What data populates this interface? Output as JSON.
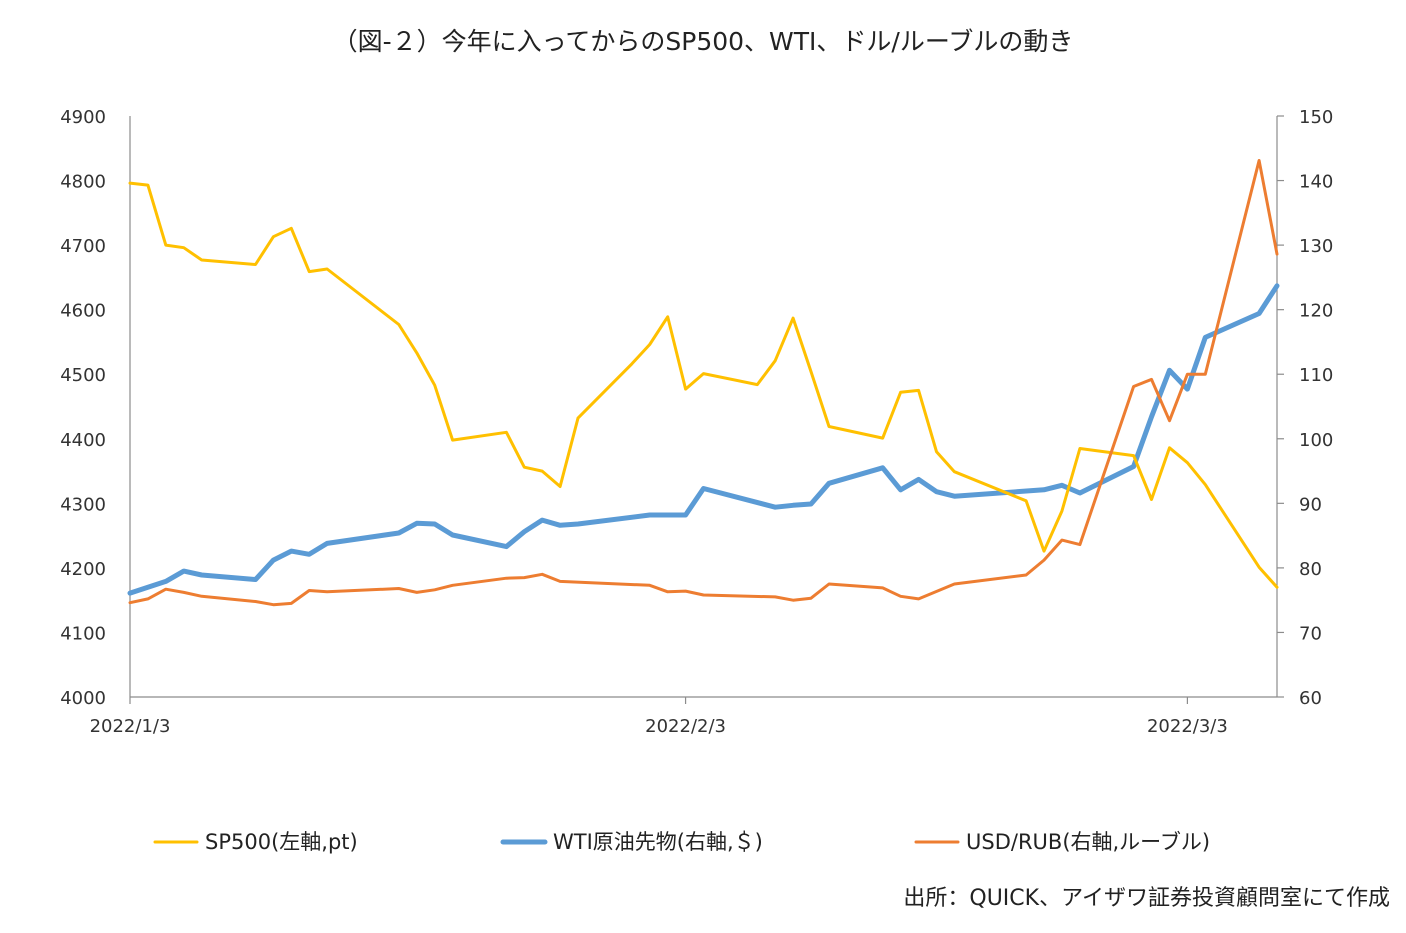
{
  "title": "（図-２）今年に入ってからのSP500、WTI、ドル/ルーブルの動き",
  "source": "出所：QUICK、アイザワ証券投資顧問室にて作成",
  "colors": {
    "sp500": "#FFC000",
    "wti": "#5B9BD5",
    "usdrub": "#ED7D31",
    "axis": "#8c8c8c"
  },
  "chart_data": {
    "type": "line",
    "title": "（図-２）今年に入ってからのSP500、WTI、ドル/ルーブルの動き",
    "x_ticks": [
      "2022/1/3",
      "2022/2/3",
      "2022/3/3"
    ],
    "x_range": [
      "2022/1/3",
      "2022/3/8"
    ],
    "y_left": {
      "range": [
        4000,
        4900
      ],
      "ticks": [
        4000,
        4100,
        4200,
        4300,
        4400,
        4500,
        4600,
        4700,
        4800,
        4900
      ]
    },
    "y_right": {
      "range": [
        60,
        150
      ],
      "ticks": [
        60,
        70,
        80,
        90,
        100,
        110,
        120,
        130,
        140,
        150
      ]
    },
    "grid": false,
    "legend_position": "bottom",
    "series": [
      {
        "name": "SP500(左軸,pt)",
        "axis": "left",
        "key": "sp500",
        "points": [
          [
            "2022-01-03",
            4796
          ],
          [
            "2022-01-04",
            4793
          ],
          [
            "2022-01-05",
            4700
          ],
          [
            "2022-01-06",
            4696
          ],
          [
            "2022-01-07",
            4677
          ],
          [
            "2022-01-10",
            4670
          ],
          [
            "2022-01-11",
            4713
          ],
          [
            "2022-01-12",
            4726
          ],
          [
            "2022-01-13",
            4659
          ],
          [
            "2022-01-14",
            4663
          ],
          [
            "2022-01-18",
            4577
          ],
          [
            "2022-01-19",
            4533
          ],
          [
            "2022-01-20",
            4483
          ],
          [
            "2022-01-21",
            4398
          ],
          [
            "2022-01-24",
            4410
          ],
          [
            "2022-01-25",
            4356
          ],
          [
            "2022-01-26",
            4350
          ],
          [
            "2022-01-27",
            4326
          ],
          [
            "2022-01-28",
            4432
          ],
          [
            "2022-01-31",
            4516
          ],
          [
            "2022-02-01",
            4546
          ],
          [
            "2022-02-02",
            4589
          ],
          [
            "2022-02-03",
            4477
          ],
          [
            "2022-02-04",
            4501
          ],
          [
            "2022-02-07",
            4484
          ],
          [
            "2022-02-08",
            4521
          ],
          [
            "2022-02-09",
            4587
          ],
          [
            "2022-02-10",
            4504
          ],
          [
            "2022-02-11",
            4419
          ],
          [
            "2022-02-14",
            4401
          ],
          [
            "2022-02-15",
            4472
          ],
          [
            "2022-02-16",
            4475
          ],
          [
            "2022-02-17",
            4380
          ],
          [
            "2022-02-18",
            4349
          ],
          [
            "2022-02-22",
            4304
          ],
          [
            "2022-02-23",
            4226
          ],
          [
            "2022-02-24",
            4288
          ],
          [
            "2022-02-25",
            4385
          ],
          [
            "2022-02-28",
            4374
          ],
          [
            "2022-03-01",
            4306
          ],
          [
            "2022-03-02",
            4386
          ],
          [
            "2022-03-03",
            4363
          ],
          [
            "2022-03-04",
            4329
          ],
          [
            "2022-03-07",
            4201
          ],
          [
            "2022-03-08",
            4170
          ]
        ]
      },
      {
        "name": "WTI原油先物(右軸,＄)",
        "axis": "right",
        "key": "wti",
        "points": [
          [
            "2022-01-03",
            76.1
          ],
          [
            "2022-01-05",
            77.9
          ],
          [
            "2022-01-06",
            79.5
          ],
          [
            "2022-01-07",
            78.9
          ],
          [
            "2022-01-10",
            78.2
          ],
          [
            "2022-01-11",
            81.2
          ],
          [
            "2022-01-12",
            82.6
          ],
          [
            "2022-01-13",
            82.1
          ],
          [
            "2022-01-14",
            83.8
          ],
          [
            "2022-01-18",
            85.4
          ],
          [
            "2022-01-19",
            86.9
          ],
          [
            "2022-01-20",
            86.8
          ],
          [
            "2022-01-21",
            85.1
          ],
          [
            "2022-01-24",
            83.3
          ],
          [
            "2022-01-25",
            85.6
          ],
          [
            "2022-01-26",
            87.4
          ],
          [
            "2022-01-27",
            86.6
          ],
          [
            "2022-01-28",
            86.8
          ],
          [
            "2022-02-01",
            88.2
          ],
          [
            "2022-02-03",
            88.2
          ],
          [
            "2022-02-04",
            92.3
          ],
          [
            "2022-02-08",
            89.4
          ],
          [
            "2022-02-09",
            89.7
          ],
          [
            "2022-02-10",
            89.9
          ],
          [
            "2022-02-11",
            93.1
          ],
          [
            "2022-02-14",
            95.5
          ],
          [
            "2022-02-15",
            92.1
          ],
          [
            "2022-02-16",
            93.7
          ],
          [
            "2022-02-17",
            91.8
          ],
          [
            "2022-02-18",
            91.1
          ],
          [
            "2022-02-23",
            92.1
          ],
          [
            "2022-02-24",
            92.8
          ],
          [
            "2022-02-25",
            91.6
          ],
          [
            "2022-02-28",
            95.7
          ],
          [
            "2022-03-01",
            103.4
          ],
          [
            "2022-03-02",
            110.6
          ],
          [
            "2022-03-03",
            107.7
          ],
          [
            "2022-03-04",
            115.7
          ],
          [
            "2022-03-07",
            119.4
          ],
          [
            "2022-03-08",
            123.7
          ]
        ]
      },
      {
        "name": "USD/RUB(右軸,ルーブル)",
        "axis": "right",
        "key": "usdrub",
        "points": [
          [
            "2022-01-03",
            74.6
          ],
          [
            "2022-01-04",
            75.2
          ],
          [
            "2022-01-05",
            76.7
          ],
          [
            "2022-01-06",
            76.2
          ],
          [
            "2022-01-07",
            75.6
          ],
          [
            "2022-01-10",
            74.8
          ],
          [
            "2022-01-11",
            74.3
          ],
          [
            "2022-01-12",
            74.5
          ],
          [
            "2022-01-13",
            76.5
          ],
          [
            "2022-01-14",
            76.3
          ],
          [
            "2022-01-18",
            76.8
          ],
          [
            "2022-01-19",
            76.2
          ],
          [
            "2022-01-20",
            76.6
          ],
          [
            "2022-01-21",
            77.3
          ],
          [
            "2022-01-24",
            78.4
          ],
          [
            "2022-01-25",
            78.5
          ],
          [
            "2022-01-26",
            79.0
          ],
          [
            "2022-01-27",
            77.9
          ],
          [
            "2022-02-01",
            77.3
          ],
          [
            "2022-02-02",
            76.3
          ],
          [
            "2022-02-03",
            76.4
          ],
          [
            "2022-02-04",
            75.8
          ],
          [
            "2022-02-08",
            75.5
          ],
          [
            "2022-02-09",
            75.0
          ],
          [
            "2022-02-10",
            75.3
          ],
          [
            "2022-02-11",
            77.5
          ],
          [
            "2022-02-14",
            76.9
          ],
          [
            "2022-02-15",
            75.6
          ],
          [
            "2022-02-16",
            75.2
          ],
          [
            "2022-02-18",
            77.5
          ],
          [
            "2022-02-22",
            78.9
          ],
          [
            "2022-02-23",
            81.2
          ],
          [
            "2022-02-24",
            84.3
          ],
          [
            "2022-02-25",
            83.6
          ],
          [
            "2022-02-28",
            108.1
          ],
          [
            "2022-03-01",
            109.2
          ],
          [
            "2022-03-02",
            102.8
          ],
          [
            "2022-03-03",
            110.0
          ],
          [
            "2022-03-04",
            110.0
          ],
          [
            "2022-03-07",
            143.1
          ],
          [
            "2022-03-08",
            128.6
          ]
        ]
      }
    ]
  }
}
